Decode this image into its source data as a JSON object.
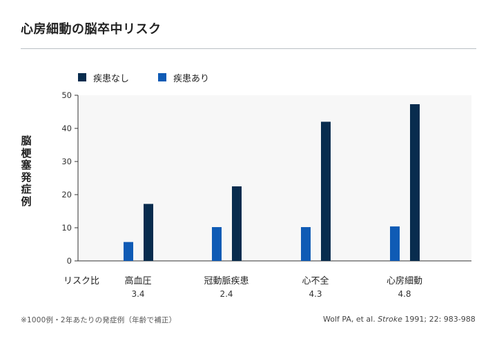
{
  "title": "心房細動の脳卒中リスク",
  "chart_data": {
    "type": "bar",
    "categories": [
      "高血圧",
      "冠動脈疾患",
      "心不全",
      "心房細動"
    ],
    "risk_label": "リスク比",
    "risk_ratios": [
      "3.4",
      "2.4",
      "4.3",
      "4.8"
    ],
    "series": [
      {
        "name": "疾患あり",
        "color": "#0f5bb5",
        "values": [
          5.7,
          10.2,
          10.2,
          10.4
        ]
      },
      {
        "name": "疾患なし",
        "color": "#082c4e",
        "values": [
          17.2,
          22.5,
          42.0,
          47.3
        ]
      }
    ],
    "legend_order": [
      "疾患なし",
      "疾患あり"
    ],
    "yticks": [
      0,
      10,
      20,
      30,
      40,
      50
    ],
    "ylim": [
      0,
      50
    ],
    "ylabel": "脳梗塞発症例",
    "ylabel_mark": "※",
    "grid": false
  },
  "footnote": "※1000例・2年あたりの発症例（年齢で補正）",
  "citation": {
    "prefix": "Wolf PA, et al. ",
    "journal": "Stroke",
    "suffix": " 1991; 22: 983-988"
  }
}
